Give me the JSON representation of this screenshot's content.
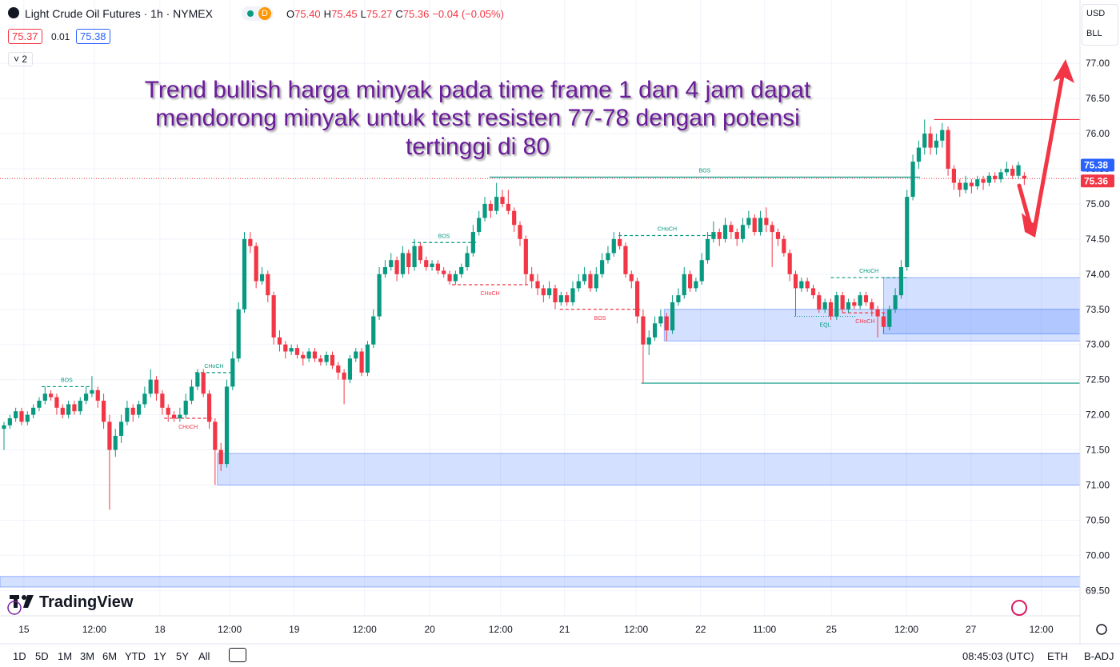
{
  "header": {
    "symbol": "Light Crude Oil Futures · 1h · NYMEX",
    "session": "D",
    "ohlc": [
      {
        "key": "O",
        "value": "75.40"
      },
      {
        "key": "H",
        "value": "75.45"
      },
      {
        "key": "L",
        "value": "75.27"
      },
      {
        "key": "C",
        "value": "75.36"
      }
    ],
    "change": "−0.04 (−0.05%)",
    "bid": "75.37",
    "spread": "0.01",
    "ask": "75.38",
    "indicators": "2",
    "currency": "USD",
    "unit": "BLL"
  },
  "footer": {
    "brand": "TradingView",
    "timeframes": [
      "1D",
      "5D",
      "1M",
      "3M",
      "6M",
      "YTD",
      "1Y",
      "5Y",
      "All"
    ],
    "clock": "08:45:03 (UTC)",
    "session": "ETH",
    "adjust": "B-ADJ"
  },
  "chart_data": {
    "type": "candlestick",
    "grid": true,
    "up_color": "#089981",
    "down_color": "#f23645",
    "annotation": [
      "Trend bullish harga minyak pada time frame 1 dan 4 jam dapat",
      "mendorong minyak untuk test resisten 77-78 dengan potensi",
      "tertinggi di 80"
    ],
    "xlim": [
      -0.68,
      183.5
    ],
    "ylim": [
      69.14,
      77.9
    ],
    "xticks": [
      {
        "value": 3.4,
        "label": "15"
      },
      {
        "value": 15.4,
        "label": "12:00"
      },
      {
        "value": 26.6,
        "label": "18"
      },
      {
        "value": 38.5,
        "label": "12:00"
      },
      {
        "value": 49.5,
        "label": "19"
      },
      {
        "value": 61.5,
        "label": "12:00"
      },
      {
        "value": 72.6,
        "label": "20"
      },
      {
        "value": 84.7,
        "label": "12:00"
      },
      {
        "value": 95.6,
        "label": "21"
      },
      {
        "value": 107.8,
        "label": "12:00"
      },
      {
        "value": 118.8,
        "label": "22"
      },
      {
        "value": 129.7,
        "label": "11:00"
      },
      {
        "value": 141.1,
        "label": "25"
      },
      {
        "value": 153.9,
        "label": "12:00"
      },
      {
        "value": 164.9,
        "label": "27"
      },
      {
        "value": 176.9,
        "label": "12:00"
      }
    ],
    "yticks": [
      {
        "value": 77,
        "label": "77.00"
      },
      {
        "value": 76.5,
        "label": "76.50"
      },
      {
        "value": 76,
        "label": "76.00"
      },
      {
        "value": 75.5,
        "label": "75.50"
      },
      {
        "value": 75,
        "label": "75.00"
      },
      {
        "value": 74.5,
        "label": "74.50"
      },
      {
        "value": 74,
        "label": "74.00"
      },
      {
        "value": 73.5,
        "label": "73.50"
      },
      {
        "value": 73,
        "label": "73.00"
      },
      {
        "value": 72.5,
        "label": "72.50"
      },
      {
        "value": 72,
        "label": "72.00"
      },
      {
        "value": 71.5,
        "label": "71.50"
      },
      {
        "value": 71,
        "label": "71.00"
      },
      {
        "value": 70.5,
        "label": "70.50"
      },
      {
        "value": 70,
        "label": "70.00"
      },
      {
        "value": 69.5,
        "label": "69.50"
      }
    ],
    "price_badges": [
      {
        "value": 75.38,
        "color": "#2962ff"
      },
      {
        "value": 75.36,
        "color": "#f23645"
      }
    ],
    "zones": [
      {
        "top": 71.45,
        "bottom": 71.0,
        "from": 36.4
      },
      {
        "top": 73.5,
        "bottom": 73.05,
        "from": 112.6
      },
      {
        "top": 73.95,
        "bottom": 73.15,
        "from": 150
      },
      {
        "top": 69.7,
        "bottom": 69.55,
        "from": -0.68
      }
    ],
    "levels": [
      {
        "price": 76.2,
        "from": 158.6,
        "color": "#f23645"
      },
      {
        "price": 72.45,
        "from": 108.7,
        "color": "#089981"
      }
    ],
    "structure": [
      {
        "label": "BOS",
        "price": 72.4,
        "from": 6.4,
        "to": 15,
        "color": "#089981",
        "style": "dashed"
      },
      {
        "label": "CHoCH",
        "price": 72.6,
        "from": 32.6,
        "to": 39,
        "color": "#089981",
        "style": "dashed"
      },
      {
        "label": "CHoCH",
        "price": 71.95,
        "from": 27.3,
        "to": 35.5,
        "color": "#f23645",
        "style": "dashed"
      },
      {
        "label": "BOS",
        "price": 74.45,
        "from": 69.6,
        "to": 80.5,
        "color": "#089981",
        "style": "dashed"
      },
      {
        "label": "CHoCH",
        "price": 73.85,
        "from": 76.4,
        "to": 89.4,
        "color": "#f23645",
        "style": "dashed"
      },
      {
        "label": "BOS",
        "price": 73.5,
        "from": 94.8,
        "to": 108.5,
        "color": "#f23645",
        "style": "dashed"
      },
      {
        "label": "CHoCH",
        "price": 74.55,
        "from": 104.8,
        "to": 121.4,
        "color": "#089981",
        "style": "dashed"
      },
      {
        "label": "BOS",
        "price": 75.38,
        "from": 82.8,
        "to": 156.2,
        "color": "#089981",
        "style": "solid"
      },
      {
        "label": "EQL",
        "price": 73.4,
        "from": 134.8,
        "to": 145.3,
        "color": "#089981",
        "style": "dotted"
      },
      {
        "label": "CHoCH",
        "price": 73.95,
        "from": 141,
        "to": 154,
        "color": "#089981",
        "style": "dashed"
      },
      {
        "label": "CHoCH",
        "price": 73.45,
        "from": 143,
        "to": 150.7,
        "color": "#f23645",
        "style": "dashed"
      }
    ],
    "ohlc": [
      [
        71.8,
        71.9,
        71.5,
        71.85
      ],
      [
        71.85,
        72.0,
        71.8,
        71.95
      ],
      [
        71.95,
        72.1,
        71.9,
        72.05
      ],
      [
        72.05,
        72.1,
        71.85,
        71.9
      ],
      [
        71.9,
        72.05,
        71.85,
        72.0
      ],
      [
        72.0,
        72.15,
        71.95,
        72.1
      ],
      [
        72.1,
        72.25,
        72.05,
        72.2
      ],
      [
        72.2,
        72.4,
        72.15,
        72.3
      ],
      [
        72.3,
        72.35,
        72.2,
        72.25
      ],
      [
        72.25,
        72.3,
        72.0,
        72.1
      ],
      [
        72.1,
        72.15,
        71.95,
        72.0
      ],
      [
        72.0,
        72.2,
        71.95,
        72.15
      ],
      [
        72.15,
        72.2,
        72.0,
        72.05
      ],
      [
        72.05,
        72.25,
        72.0,
        72.2
      ],
      [
        72.2,
        72.4,
        72.15,
        72.3
      ],
      [
        72.3,
        72.55,
        72.25,
        72.35
      ],
      [
        72.35,
        72.4,
        72.1,
        72.2
      ],
      [
        72.2,
        72.3,
        71.8,
        71.9
      ],
      [
        71.9,
        72.0,
        70.65,
        71.5
      ],
      [
        71.5,
        71.8,
        71.4,
        71.7
      ],
      [
        71.7,
        72.0,
        71.6,
        71.9
      ],
      [
        71.9,
        72.2,
        71.85,
        72.1
      ],
      [
        72.1,
        72.15,
        71.9,
        72.0
      ],
      [
        72.0,
        72.2,
        71.95,
        72.15
      ],
      [
        72.15,
        72.4,
        72.1,
        72.3
      ],
      [
        72.3,
        72.65,
        72.25,
        72.5
      ],
      [
        72.5,
        72.55,
        72.2,
        72.3
      ],
      [
        72.3,
        72.35,
        72.0,
        72.1
      ],
      [
        72.1,
        72.15,
        71.9,
        72.0
      ],
      [
        72.0,
        72.05,
        71.9,
        71.95
      ],
      [
        71.95,
        72.1,
        71.9,
        72.0
      ],
      [
        72.0,
        72.3,
        71.95,
        72.2
      ],
      [
        72.2,
        72.5,
        72.15,
        72.4
      ],
      [
        72.4,
        72.65,
        72.35,
        72.6
      ],
      [
        72.6,
        72.65,
        72.25,
        72.3
      ],
      [
        72.3,
        72.35,
        71.8,
        71.9
      ],
      [
        71.9,
        71.95,
        71.0,
        71.5
      ],
      [
        71.5,
        71.6,
        71.2,
        71.3
      ],
      [
        71.3,
        72.5,
        71.25,
        72.4
      ],
      [
        72.4,
        72.9,
        72.35,
        72.8
      ],
      [
        72.8,
        73.6,
        72.75,
        73.5
      ],
      [
        73.5,
        74.6,
        73.45,
        74.5
      ],
      [
        74.5,
        74.6,
        74.3,
        74.4
      ],
      [
        74.4,
        74.45,
        73.8,
        73.9
      ],
      [
        73.9,
        74.1,
        73.85,
        74.0
      ],
      [
        74.0,
        74.05,
        73.6,
        73.7
      ],
      [
        73.7,
        73.75,
        73.0,
        73.1
      ],
      [
        73.1,
        73.2,
        72.9,
        73.0
      ],
      [
        73.0,
        73.05,
        72.8,
        72.9
      ],
      [
        72.9,
        73.0,
        72.85,
        72.95
      ],
      [
        72.95,
        73.0,
        72.8,
        72.85
      ],
      [
        72.85,
        72.9,
        72.7,
        72.8
      ],
      [
        72.8,
        72.95,
        72.75,
        72.9
      ],
      [
        72.9,
        72.95,
        72.75,
        72.8
      ],
      [
        72.8,
        72.85,
        72.7,
        72.75
      ],
      [
        72.75,
        72.9,
        72.7,
        72.85
      ],
      [
        72.85,
        72.9,
        72.65,
        72.7
      ],
      [
        72.7,
        72.75,
        72.5,
        72.6
      ],
      [
        72.6,
        72.65,
        72.15,
        72.5
      ],
      [
        72.5,
        72.85,
        72.45,
        72.8
      ],
      [
        72.8,
        72.95,
        72.75,
        72.9
      ],
      [
        72.9,
        72.95,
        72.55,
        72.6
      ],
      [
        72.6,
        73.05,
        72.55,
        73.0
      ],
      [
        73.0,
        73.5,
        72.95,
        73.4
      ],
      [
        73.4,
        74.1,
        73.35,
        74.0
      ],
      [
        74.0,
        74.2,
        73.95,
        74.1
      ],
      [
        74.1,
        74.3,
        74.05,
        74.2
      ],
      [
        74.2,
        74.25,
        73.9,
        74.0
      ],
      [
        74.0,
        74.4,
        73.95,
        74.3
      ],
      [
        74.3,
        74.35,
        74.0,
        74.1
      ],
      [
        74.1,
        74.5,
        74.05,
        74.4
      ],
      [
        74.4,
        74.45,
        74.15,
        74.2
      ],
      [
        74.2,
        74.25,
        74.05,
        74.1
      ],
      [
        74.1,
        74.2,
        74.05,
        74.15
      ],
      [
        74.15,
        74.2,
        74.0,
        74.05
      ],
      [
        74.05,
        74.1,
        73.95,
        74.0
      ],
      [
        74.0,
        74.05,
        73.85,
        73.9
      ],
      [
        73.9,
        74.05,
        73.85,
        74.0
      ],
      [
        74.0,
        74.15,
        73.95,
        74.1
      ],
      [
        74.1,
        74.4,
        74.05,
        74.3
      ],
      [
        74.3,
        74.7,
        74.25,
        74.6
      ],
      [
        74.6,
        74.9,
        74.55,
        74.8
      ],
      [
        74.8,
        75.1,
        74.75,
        75.0
      ],
      [
        75.0,
        75.05,
        74.8,
        74.9
      ],
      [
        74.9,
        75.3,
        74.85,
        75.1
      ],
      [
        75.1,
        75.2,
        74.95,
        75.0
      ],
      [
        75.0,
        75.2,
        74.85,
        74.9
      ],
      [
        74.9,
        74.95,
        74.6,
        74.7
      ],
      [
        74.7,
        74.75,
        74.4,
        74.5
      ],
      [
        74.5,
        74.55,
        73.85,
        74.0
      ],
      [
        74.0,
        74.1,
        73.8,
        73.9
      ],
      [
        73.9,
        74.0,
        73.7,
        73.8
      ],
      [
        73.8,
        73.85,
        73.6,
        73.7
      ],
      [
        73.7,
        73.9,
        73.65,
        73.8
      ],
      [
        73.8,
        73.85,
        73.5,
        73.6
      ],
      [
        73.6,
        73.75,
        73.55,
        73.7
      ],
      [
        73.7,
        73.75,
        73.55,
        73.6
      ],
      [
        73.6,
        73.9,
        73.55,
        73.8
      ],
      [
        73.8,
        74.0,
        73.75,
        73.9
      ],
      [
        73.9,
        74.1,
        73.85,
        74.0
      ],
      [
        74.0,
        74.05,
        73.75,
        73.8
      ],
      [
        73.8,
        74.1,
        73.75,
        74.0
      ],
      [
        74.0,
        74.3,
        73.95,
        74.2
      ],
      [
        74.2,
        74.4,
        74.15,
        74.3
      ],
      [
        74.3,
        74.6,
        74.25,
        74.5
      ],
      [
        74.5,
        74.6,
        74.35,
        74.4
      ],
      [
        74.4,
        74.45,
        73.95,
        74.0
      ],
      [
        74.0,
        74.05,
        73.8,
        73.9
      ],
      [
        73.9,
        73.95,
        73.3,
        73.4
      ],
      [
        73.4,
        73.5,
        72.45,
        73.0
      ],
      [
        73.0,
        73.2,
        72.85,
        73.1
      ],
      [
        73.1,
        73.4,
        73.05,
        73.3
      ],
      [
        73.3,
        73.5,
        73.25,
        73.4
      ],
      [
        73.4,
        73.45,
        73.05,
        73.2
      ],
      [
        73.2,
        73.7,
        73.15,
        73.6
      ],
      [
        73.6,
        73.8,
        73.55,
        73.7
      ],
      [
        73.7,
        74.1,
        73.65,
        74.0
      ],
      [
        74.0,
        74.05,
        73.75,
        73.8
      ],
      [
        73.8,
        73.95,
        73.75,
        73.9
      ],
      [
        73.9,
        74.3,
        73.85,
        74.2
      ],
      [
        74.2,
        74.6,
        74.15,
        74.5
      ],
      [
        74.5,
        74.75,
        74.45,
        74.6
      ],
      [
        74.6,
        74.65,
        74.4,
        74.5
      ],
      [
        74.5,
        74.8,
        74.45,
        74.7
      ],
      [
        74.7,
        74.75,
        74.5,
        74.6
      ],
      [
        74.6,
        74.65,
        74.4,
        74.5
      ],
      [
        74.5,
        74.8,
        74.45,
        74.7
      ],
      [
        74.7,
        74.9,
        74.65,
        74.8
      ],
      [
        74.8,
        74.85,
        74.55,
        74.6
      ],
      [
        74.6,
        74.9,
        74.55,
        74.8
      ],
      [
        74.8,
        74.95,
        74.6,
        74.7
      ],
      [
        74.7,
        74.75,
        74.1,
        74.6
      ],
      [
        74.6,
        74.65,
        74.4,
        74.5
      ],
      [
        74.5,
        74.55,
        74.25,
        74.3
      ],
      [
        74.3,
        74.35,
        73.9,
        74.0
      ],
      [
        74.0,
        74.05,
        73.4,
        73.8
      ],
      [
        73.8,
        73.95,
        73.75,
        73.9
      ],
      [
        73.9,
        73.95,
        73.75,
        73.8
      ],
      [
        73.8,
        73.85,
        73.65,
        73.7
      ],
      [
        73.7,
        73.75,
        73.45,
        73.5
      ],
      [
        73.5,
        73.65,
        73.45,
        73.6
      ],
      [
        73.6,
        73.65,
        73.35,
        73.4
      ],
      [
        73.4,
        73.75,
        73.35,
        73.7
      ],
      [
        73.7,
        73.75,
        73.45,
        73.5
      ],
      [
        73.5,
        73.65,
        73.45,
        73.6
      ],
      [
        73.6,
        73.65,
        73.5,
        73.55
      ],
      [
        73.55,
        73.75,
        73.5,
        73.7
      ],
      [
        73.7,
        73.75,
        73.55,
        73.6
      ],
      [
        73.6,
        73.65,
        73.4,
        73.5
      ],
      [
        73.5,
        73.55,
        73.1,
        73.4
      ],
      [
        73.4,
        73.45,
        73.15,
        73.25
      ],
      [
        73.25,
        73.55,
        73.2,
        73.5
      ],
      [
        73.5,
        73.8,
        73.45,
        73.7
      ],
      [
        73.7,
        74.2,
        73.65,
        74.1
      ],
      [
        74.1,
        75.2,
        74.05,
        75.1
      ],
      [
        75.1,
        75.7,
        75.05,
        75.6
      ],
      [
        75.6,
        75.9,
        75.5,
        75.8
      ],
      [
        75.8,
        76.2,
        75.7,
        76.0
      ],
      [
        76.0,
        76.1,
        75.7,
        75.8
      ],
      [
        75.8,
        76.0,
        75.7,
        75.9
      ],
      [
        75.9,
        76.15,
        75.8,
        76.05
      ],
      [
        76.05,
        76.1,
        75.4,
        75.5
      ],
      [
        75.5,
        75.55,
        75.2,
        75.3
      ],
      [
        75.3,
        75.35,
        75.1,
        75.2
      ],
      [
        75.2,
        75.4,
        75.15,
        75.3
      ],
      [
        75.3,
        75.35,
        75.15,
        75.25
      ],
      [
        75.25,
        75.4,
        75.2,
        75.35
      ],
      [
        75.35,
        75.4,
        75.2,
        75.3
      ],
      [
        75.3,
        75.45,
        75.25,
        75.4
      ],
      [
        75.4,
        75.45,
        75.3,
        75.35
      ],
      [
        75.35,
        75.5,
        75.3,
        75.45
      ],
      [
        75.45,
        75.6,
        75.4,
        75.5
      ],
      [
        75.5,
        75.55,
        75.35,
        75.4
      ],
      [
        75.4,
        75.6,
        75.35,
        75.55
      ],
      [
        75.4,
        75.45,
        75.27,
        75.36
      ]
    ]
  }
}
